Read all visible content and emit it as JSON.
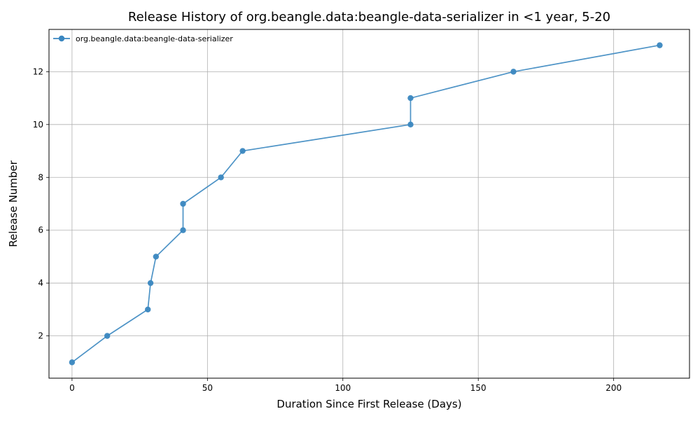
{
  "chart_data": {
    "type": "line",
    "title": "Release History of org.beangle.data:beangle-data-serializer in <1 year, 5-20",
    "xlabel": "Duration Since First Release (Days)",
    "ylabel": "Release Number",
    "xlim": [
      -8.5,
      228
    ],
    "ylim": [
      0.4,
      13.6
    ],
    "xticks": [
      0,
      50,
      100,
      150,
      200
    ],
    "yticks": [
      2,
      4,
      6,
      8,
      10,
      12
    ],
    "grid": true,
    "legend_position": "top-left",
    "series": [
      {
        "name": "org.beangle.data:beangle-data-serializer",
        "color": "#3a87c0",
        "x": [
          0,
          13,
          28,
          29,
          31,
          41,
          41,
          55,
          63,
          125,
          125,
          163,
          217
        ],
        "y": [
          1,
          2,
          3,
          4,
          5,
          6,
          7,
          8,
          9,
          10,
          11,
          12,
          13
        ]
      }
    ]
  }
}
